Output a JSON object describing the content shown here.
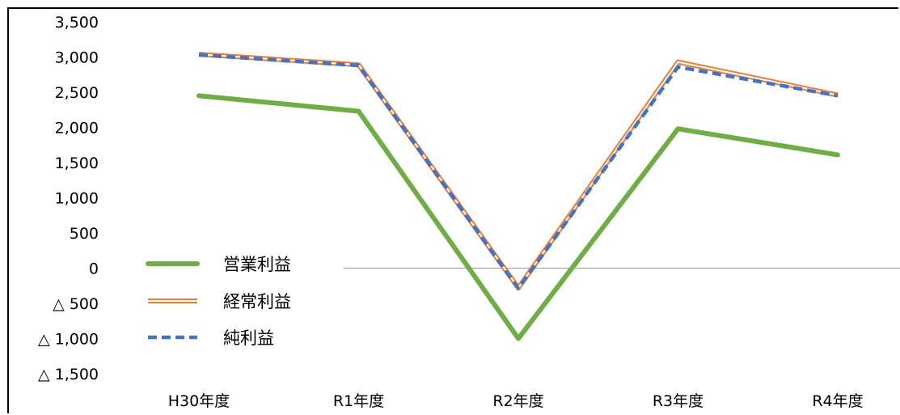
{
  "chart_data": {
    "type": "line",
    "categories": [
      "H30年度",
      "R1年度",
      "R2年度",
      "R3年度",
      "R4年度"
    ],
    "y_ticks": [
      {
        "value": 3500,
        "label": "3,500"
      },
      {
        "value": 3000,
        "label": "3,000"
      },
      {
        "value": 2500,
        "label": "2,500"
      },
      {
        "value": 2000,
        "label": "2,000"
      },
      {
        "value": 1500,
        "label": "1,500"
      },
      {
        "value": 1000,
        "label": "1,000"
      },
      {
        "value": 500,
        "label": "500"
      },
      {
        "value": 0,
        "label": "0"
      },
      {
        "value": -500,
        "label": "△ 500"
      },
      {
        "value": -1000,
        "label": "△ 1,000"
      },
      {
        "value": -1500,
        "label": "△ 1,500"
      }
    ],
    "ylim": [
      -1500,
      3500
    ],
    "grid": false,
    "zero_line": true,
    "legend_position": "lower-left",
    "series": [
      {
        "name": "営業利益",
        "values": [
          2450,
          2230,
          -1000,
          1980,
          1610
        ],
        "color": "#70AD47",
        "style": "solid-thick"
      },
      {
        "name": "経常利益",
        "values": [
          3040,
          2890,
          -280,
          2930,
          2460
        ],
        "color": "#ED7D31",
        "style": "double"
      },
      {
        "name": "純利益",
        "values": [
          3030,
          2880,
          -290,
          2860,
          2450
        ],
        "color": "#4472C4",
        "style": "dashed"
      }
    ]
  }
}
